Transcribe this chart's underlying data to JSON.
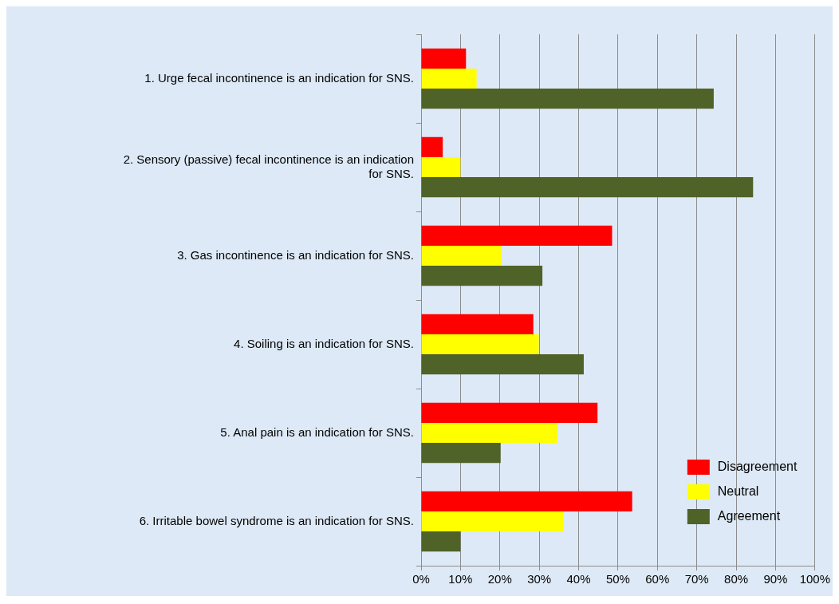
{
  "chart_data": {
    "type": "bar",
    "orientation": "horizontal",
    "categories": [
      "1. Urge fecal incontinence is an indication for SNS.",
      "2. Sensory (passive) fecal incontinence is an indication for SNS.",
      "3. Gas incontinence is an indication for SNS.",
      "4. Soiling is an indication for SNS.",
      "5. Anal pain is an indication for SNS.",
      "6. Irritable bowel syndrome is an indication for SNS."
    ],
    "series": [
      {
        "name": "Disagreement",
        "color": "#ff0000",
        "values": [
          11.4,
          5.5,
          48.5,
          28.5,
          44.8,
          53.6
        ]
      },
      {
        "name": "Neutral",
        "color": "#ffff00",
        "values": [
          14.1,
          10,
          20.4,
          29.9,
          34.6,
          36.1
        ]
      },
      {
        "name": "Agreement",
        "color": "#4f6228",
        "values": [
          74.3,
          84.3,
          30.8,
          41.3,
          20.2,
          10
        ]
      }
    ],
    "xlim": [
      0,
      100
    ],
    "xticks": [
      {
        "value": 0,
        "label": "0%"
      },
      {
        "value": 10,
        "label": "10%"
      },
      {
        "value": 20,
        "label": "20%"
      },
      {
        "value": 30,
        "label": "30%"
      },
      {
        "value": 40,
        "label": "40%"
      },
      {
        "value": 50,
        "label": "50%"
      },
      {
        "value": 60,
        "label": "60%"
      },
      {
        "value": 70,
        "label": "70%"
      },
      {
        "value": 80,
        "label": "80%"
      },
      {
        "value": 90,
        "label": "90%"
      },
      {
        "value": 100,
        "label": "100%"
      }
    ],
    "grid": "x",
    "legend": "bottom right"
  }
}
